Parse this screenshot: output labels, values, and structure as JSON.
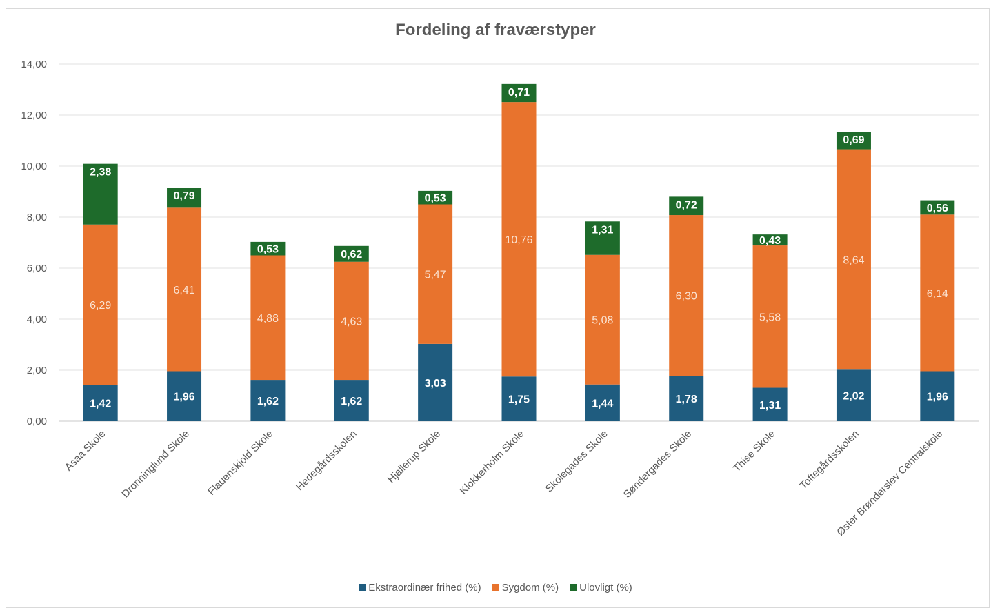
{
  "chart_data": {
    "type": "bar",
    "stacked": true,
    "title": "Fordeling af fraværstyper",
    "categories": [
      "Asaa Skole",
      "Dronninglund Skole",
      "Flauenskjold Skole",
      "Hedegårdsskolen",
      "Hjallerup Skole",
      "Klokkerholm Skole",
      "Skolegades Skole",
      "Søndergades Skole",
      "Thise Skole",
      "Toftegårdsskolen",
      "Øster Brønderslev Centralskole"
    ],
    "series": [
      {
        "name": "Ekstraordinær frihed (%)",
        "color": "#1f5c7f",
        "values": [
          1.42,
          1.96,
          1.62,
          1.62,
          3.03,
          1.75,
          1.44,
          1.78,
          1.31,
          2.02,
          1.96
        ],
        "labels": [
          "1,42",
          "1,96",
          "1,62",
          "1,62",
          "3,03",
          "1,75",
          "1,44",
          "1,78",
          "1,31",
          "2,02",
          "1,96"
        ]
      },
      {
        "name": "Sygdom (%)",
        "color": "#e8732d",
        "values": [
          6.29,
          6.41,
          4.88,
          4.63,
          5.47,
          10.76,
          5.08,
          6.3,
          5.58,
          8.64,
          6.14
        ],
        "labels": [
          "6,29",
          "6,41",
          "4,88",
          "4,63",
          "5,47",
          "10,76",
          "5,08",
          "6,30",
          "5,58",
          "8,64",
          "6,14"
        ]
      },
      {
        "name": "Ulovligt (%)",
        "color": "#1e6b2b",
        "values": [
          2.38,
          0.79,
          0.53,
          0.62,
          0.53,
          0.71,
          1.31,
          0.72,
          0.43,
          0.69,
          0.56
        ],
        "labels": [
          "2,38",
          "0,79",
          "0,53",
          "0,62",
          "0,53",
          "0,71",
          "1,31",
          "0,72",
          "0,43",
          "0,69",
          "0,56"
        ]
      }
    ],
    "yticks": [
      "0,00",
      "2,00",
      "4,00",
      "6,00",
      "8,00",
      "10,00",
      "12,00",
      "14,00"
    ],
    "ylim": [
      0,
      14
    ],
    "grid": true,
    "legend_position": "bottom"
  }
}
